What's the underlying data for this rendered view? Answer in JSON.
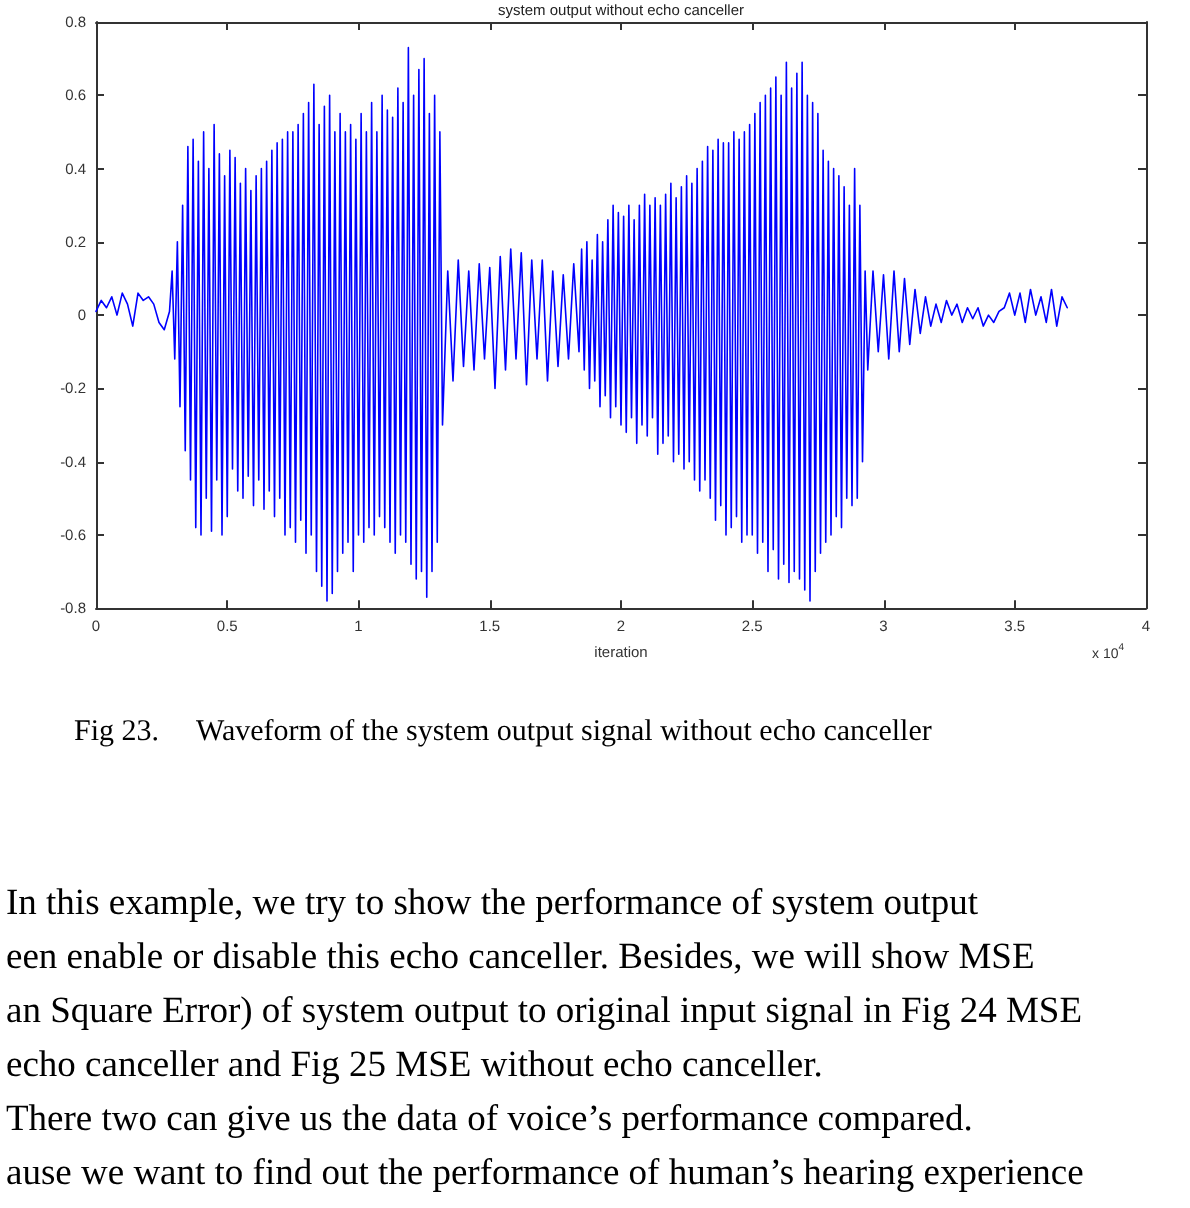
{
  "chart_data": {
    "type": "line",
    "title": "system output without echo canceller",
    "xlabel": "iteration",
    "color": "#0000ff",
    "x": [
      0,
      0.02,
      0.04,
      0.06,
      0.08,
      0.1,
      0.12,
      0.14,
      0.16,
      0.18,
      0.2,
      0.22,
      0.24,
      0.26,
      0.28,
      0.29,
      0.3,
      0.31,
      0.32,
      0.33,
      0.34,
      0.35,
      0.36,
      0.37,
      0.38,
      0.39,
      0.4,
      0.41,
      0.42,
      0.43,
      0.44,
      0.45,
      0.46,
      0.47,
      0.48,
      0.49,
      0.5,
      0.51,
      0.52,
      0.53,
      0.54,
      0.55,
      0.56,
      0.57,
      0.58,
      0.59,
      0.6,
      0.61,
      0.62,
      0.63,
      0.64,
      0.65,
      0.66,
      0.67,
      0.68,
      0.69,
      0.7,
      0.71,
      0.72,
      0.73,
      0.74,
      0.75,
      0.76,
      0.77,
      0.78,
      0.79,
      0.8,
      0.81,
      0.82,
      0.83,
      0.84,
      0.85,
      0.86,
      0.87,
      0.88,
      0.89,
      0.9,
      0.91,
      0.92,
      0.93,
      0.94,
      0.95,
      0.96,
      0.97,
      0.98,
      0.99,
      1,
      1.01,
      1.02,
      1.03,
      1.04,
      1.05,
      1.06,
      1.07,
      1.08,
      1.09,
      1.1,
      1.11,
      1.12,
      1.13,
      1.14,
      1.15,
      1.16,
      1.17,
      1.18,
      1.19,
      1.2,
      1.21,
      1.22,
      1.23,
      1.24,
      1.25,
      1.26,
      1.27,
      1.28,
      1.29,
      1.3,
      1.31,
      1.32,
      1.34,
      1.36,
      1.38,
      1.4,
      1.42,
      1.44,
      1.46,
      1.48,
      1.5,
      1.52,
      1.54,
      1.56,
      1.58,
      1.6,
      1.62,
      1.64,
      1.66,
      1.68,
      1.7,
      1.72,
      1.74,
      1.76,
      1.78,
      1.8,
      1.82,
      1.84,
      1.85,
      1.86,
      1.87,
      1.88,
      1.89,
      1.9,
      1.91,
      1.92,
      1.93,
      1.94,
      1.95,
      1.96,
      1.97,
      1.98,
      1.99,
      2,
      2.01,
      2.02,
      2.03,
      2.04,
      2.05,
      2.06,
      2.07,
      2.08,
      2.09,
      2.1,
      2.11,
      2.12,
      2.13,
      2.14,
      2.15,
      2.16,
      2.17,
      2.18,
      2.19,
      2.2,
      2.21,
      2.22,
      2.23,
      2.24,
      2.25,
      2.26,
      2.27,
      2.28,
      2.29,
      2.3,
      2.31,
      2.32,
      2.33,
      2.34,
      2.35,
      2.36,
      2.37,
      2.38,
      2.39,
      2.4,
      2.41,
      2.42,
      2.43,
      2.44,
      2.45,
      2.46,
      2.47,
      2.48,
      2.49,
      2.5,
      2.51,
      2.52,
      2.53,
      2.54,
      2.55,
      2.56,
      2.57,
      2.58,
      2.59,
      2.6,
      2.61,
      2.62,
      2.63,
      2.64,
      2.65,
      2.66,
      2.67,
      2.68,
      2.69,
      2.7,
      2.71,
      2.72,
      2.73,
      2.74,
      2.75,
      2.76,
      2.77,
      2.78,
      2.79,
      2.8,
      2.81,
      2.82,
      2.83,
      2.84,
      2.85,
      2.86,
      2.87,
      2.88,
      2.89,
      2.9,
      2.91,
      2.92,
      2.93,
      2.94,
      2.96,
      2.98,
      3,
      3.02,
      3.04,
      3.06,
      3.08,
      3.1,
      3.12,
      3.14,
      3.16,
      3.18,
      3.2,
      3.22,
      3.24,
      3.26,
      3.28,
      3.3,
      3.32,
      3.34,
      3.36,
      3.38,
      3.4,
      3.42,
      3.44,
      3.46,
      3.48,
      3.5,
      3.52,
      3.54,
      3.56,
      3.58,
      3.6,
      3.62,
      3.64,
      3.66,
      3.68,
      3.7
    ],
    "values": [
      0.01,
      0.04,
      0.02,
      0.05,
      0,
      0.06,
      0.03,
      -0.03,
      0.06,
      0.04,
      0.05,
      0.03,
      -0.02,
      -0.04,
      0.01,
      0.12,
      -0.12,
      0.2,
      -0.25,
      0.3,
      -0.37,
      0.46,
      -0.45,
      0.48,
      -0.58,
      0.42,
      -0.6,
      0.5,
      -0.5,
      0.4,
      -0.59,
      0.52,
      -0.45,
      0.44,
      -0.6,
      0.38,
      -0.55,
      0.45,
      -0.42,
      0.43,
      -0.48,
      0.36,
      -0.5,
      0.4,
      -0.44,
      0.34,
      -0.52,
      0.38,
      -0.45,
      0.4,
      -0.53,
      0.42,
      -0.48,
      0.45,
      -0.55,
      0.47,
      -0.5,
      0.48,
      -0.6,
      0.5,
      -0.58,
      0.5,
      -0.62,
      0.52,
      -0.56,
      0.55,
      -0.65,
      0.58,
      -0.6,
      0.63,
      -0.7,
      0.52,
      -0.74,
      0.57,
      -0.78,
      0.6,
      -0.76,
      0.5,
      -0.7,
      0.55,
      -0.65,
      0.5,
      -0.62,
      0.52,
      -0.7,
      0.48,
      -0.6,
      0.55,
      -0.62,
      0.5,
      -0.58,
      0.58,
      -0.6,
      0.5,
      -0.55,
      0.6,
      -0.58,
      0.56,
      -0.62,
      0.54,
      -0.65,
      0.62,
      -0.6,
      0.58,
      -0.62,
      0.73,
      -0.68,
      0.6,
      -0.72,
      0.67,
      -0.7,
      0.7,
      -0.77,
      0.55,
      -0.7,
      0.6,
      -0.62,
      0.5,
      -0.3,
      0.12,
      -0.18,
      0.15,
      -0.14,
      0.12,
      -0.15,
      0.14,
      -0.12,
      0.13,
      -0.2,
      0.16,
      -0.15,
      0.18,
      -0.12,
      0.17,
      -0.19,
      0.15,
      -0.12,
      0.15,
      -0.18,
      0.12,
      -0.14,
      0.11,
      -0.12,
      0.14,
      -0.1,
      0.18,
      -0.15,
      0.2,
      -0.2,
      0.15,
      -0.18,
      0.22,
      -0.25,
      0.2,
      -0.22,
      0.26,
      -0.28,
      0.3,
      -0.25,
      0.28,
      -0.3,
      0.27,
      -0.32,
      0.3,
      -0.28,
      0.26,
      -0.35,
      0.3,
      -0.3,
      0.33,
      -0.33,
      0.3,
      -0.28,
      0.32,
      -0.38,
      0.3,
      -0.35,
      0.33,
      -0.33,
      0.36,
      -0.4,
      0.32,
      -0.38,
      0.35,
      -0.42,
      0.38,
      -0.4,
      0.36,
      -0.45,
      0.4,
      -0.48,
      0.42,
      -0.45,
      0.46,
      -0.5,
      0.45,
      -0.56,
      0.48,
      -0.52,
      0.47,
      -0.6,
      0.47,
      -0.58,
      0.5,
      -0.55,
      0.48,
      -0.62,
      0.5,
      -0.6,
      0.52,
      -0.6,
      0.55,
      -0.65,
      0.58,
      -0.62,
      0.6,
      -0.7,
      0.62,
      -0.64,
      0.65,
      -0.72,
      0.6,
      -0.68,
      0.69,
      -0.73,
      0.62,
      -0.7,
      0.66,
      -0.72,
      0.69,
      -0.75,
      0.6,
      -0.78,
      0.58,
      -0.7,
      0.55,
      -0.65,
      0.45,
      -0.62,
      0.42,
      -0.6,
      0.4,
      -0.55,
      0.38,
      -0.58,
      0.35,
      -0.5,
      0.3,
      -0.52,
      0.4,
      -0.5,
      0.3,
      -0.4,
      0.12,
      -0.15,
      0.12,
      -0.1,
      0.11,
      -0.12,
      0.12,
      -0.1,
      0.1,
      -0.08,
      0.07,
      -0.05,
      0.05,
      -0.03,
      0.03,
      -0.02,
      0.04,
      0,
      0.03,
      -0.02,
      0.02,
      -0.01,
      0.02,
      -0.03,
      0,
      -0.02,
      0.01,
      0.02,
      0.06,
      0,
      0.06,
      -0.02,
      0.07,
      0,
      0.05,
      -0.02,
      0.07,
      -0.03,
      0.05,
      0.02
    ],
    "xlim": [
      0,
      4
    ],
    "xticks": [
      0,
      0.5,
      1,
      1.5,
      2,
      2.5,
      3,
      3.5,
      4
    ],
    "ylim": [
      -0.8,
      0.8
    ],
    "yticks": [
      -0.8,
      -0.6,
      -0.4,
      -0.2,
      0,
      0.2,
      0.4,
      0.6,
      0.8
    ],
    "annotations": [
      "x 10$^{4}$",
      "Fig 23.     Waveform of the system output signal without echo canceller",
      "In this example, we try to show the performance of system output",
      "een enable or disable this echo canceller. Besides, we will show MSE",
      "an Square Error) of system output to original input signal in Fig 24 MSE",
      "echo canceller and Fig 25 MSE without echo canceller.",
      "There two can give us the data of voice’s performance compared.",
      "ause we want to find out the performance of human’s hearing experience"
    ]
  }
}
